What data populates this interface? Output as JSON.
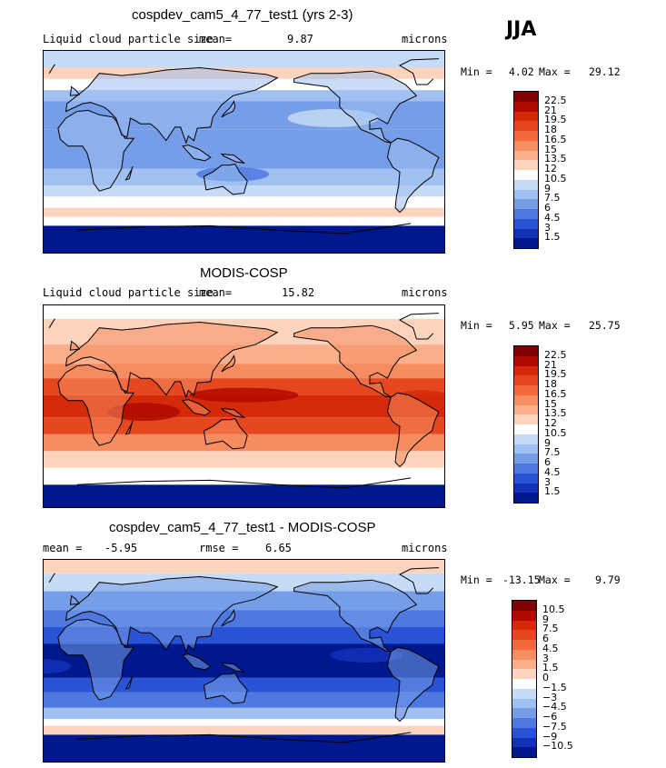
{
  "season": "JJA",
  "chart_data": [
    {
      "type": "heatmap",
      "title": "cospdev_cam5_4_77_test1 (yrs 2-3)",
      "field_label": "Liquid cloud particle size",
      "mean_label": "mean=",
      "mean": "9.87",
      "units": "microns",
      "min_label": "Min =",
      "min": "4.02",
      "max_label": "Max =",
      "max": "29.12",
      "colorbar_levels": [
        "22.5",
        "21",
        "19.5",
        "18",
        "16.5",
        "15",
        "13.5",
        "12",
        "10.5",
        "9",
        "7.5",
        "6",
        "4.5",
        "3",
        "1.5"
      ]
    },
    {
      "type": "heatmap",
      "title": "MODIS-COSP",
      "field_label": "Liquid cloud particle size",
      "mean_label": "mean=",
      "mean": "15.82",
      "units": "microns",
      "min_label": "Min =",
      "min": "5.95",
      "max_label": "Max =",
      "max": "25.75",
      "colorbar_levels": [
        "22.5",
        "21",
        "19.5",
        "18",
        "16.5",
        "15",
        "13.5",
        "12",
        "10.5",
        "9",
        "7.5",
        "6",
        "4.5",
        "3",
        "1.5"
      ]
    },
    {
      "type": "heatmap",
      "title": "cospdev_cam5_4_77_test1 - MODIS-COSP",
      "mean_label": "mean =",
      "mean": "-5.95",
      "rmse_label": "rmse =",
      "rmse": "6.65",
      "units": "microns",
      "min_label": "Min =",
      "min": "-13.15",
      "max_label": "Max =",
      "max": "9.79",
      "colorbar_levels": [
        "10.5",
        "9",
        "7.5",
        "6",
        "4.5",
        "3",
        "1.5",
        "0",
        "−1.5",
        "−3",
        "−4.5",
        "−6",
        "−7.5",
        "−9",
        "−10.5"
      ]
    }
  ],
  "palette": [
    "#7f0000",
    "#b00a00",
    "#d42a0a",
    "#e6471e",
    "#f0683c",
    "#f68c60",
    "#f9b08b",
    "#fcd3bc",
    "#ffffff",
    "#c6dbf6",
    "#9fc0f0",
    "#769ee8",
    "#4d78e0",
    "#2a52d4",
    "#1230b8",
    "#00188e"
  ]
}
